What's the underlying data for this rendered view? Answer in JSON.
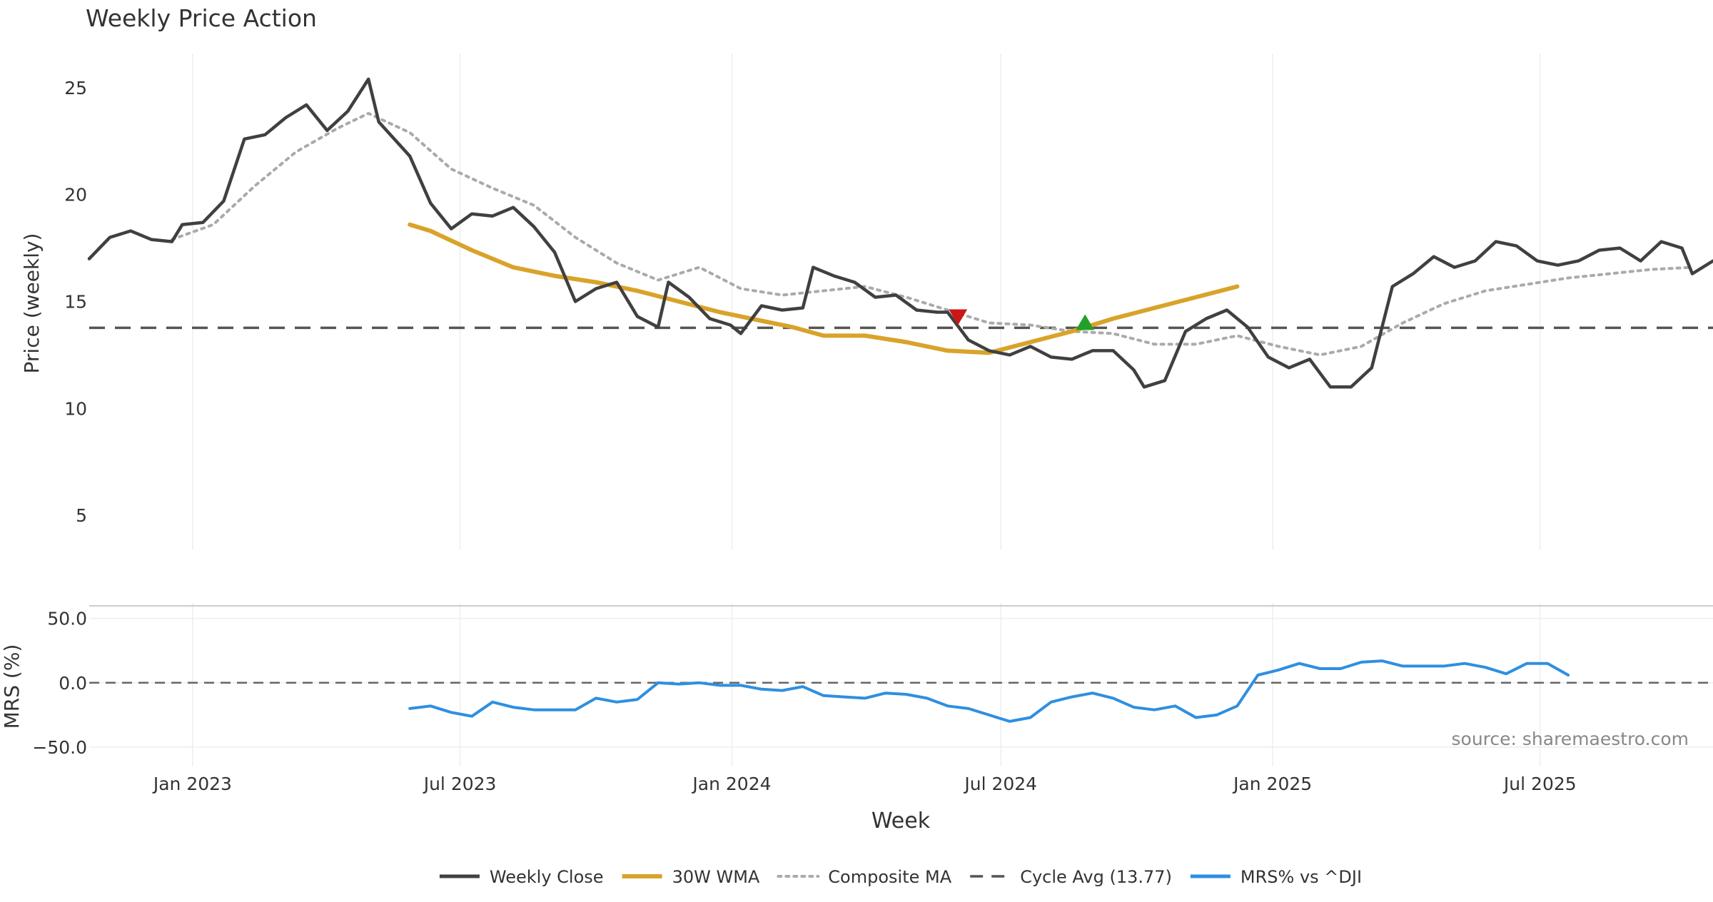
{
  "chart_data": {
    "title": "Weekly Price Action",
    "source_note": "source: sharemaestro.com",
    "xlabel": "Week",
    "x_ticks": [
      "2023-01-01",
      "2023-07-01",
      "2024-01-01",
      "2024-07-01",
      "2025-01-01",
      "2025-07-01"
    ],
    "x_tick_labels": [
      "Jan 2023",
      "Jul 2023",
      "Jan 2024",
      "Jul 2024",
      "Jan 2025",
      "Jul 2025"
    ],
    "x_range": [
      "2022-10-23",
      "2025-10-26"
    ],
    "legend": {
      "position": "bottom-center",
      "entries": [
        "Weekly Close",
        "30W WMA",
        "Composite MA",
        "Cycle Avg (13.77)",
        "MRS% vs ^DJI"
      ]
    },
    "colors": {
      "close": "#404040",
      "wma": "#d9a32a",
      "composite": "#aaaaaa",
      "cycle": "#555555",
      "mrs": "#2e8fe0",
      "buy": "#22a02a",
      "sell": "#cc1616",
      "grid": "#eeeeee"
    },
    "price_panel": {
      "type": "line",
      "ylabel": "Price (weekly)",
      "ylim": [
        3.4,
        26.6
      ],
      "yticks": [
        5,
        10,
        15,
        20,
        25
      ],
      "grid": "vertical",
      "cycle_avg": 13.77,
      "series": [
        {
          "name": "Weekly Close",
          "key": "close",
          "style": "solid",
          "width": 4.5,
          "points": [
            [
              "2022-10-23",
              17.0
            ],
            [
              "2022-11-06",
              18.0
            ],
            [
              "2022-11-20",
              18.3
            ],
            [
              "2022-12-04",
              17.9
            ],
            [
              "2022-12-18",
              17.8
            ],
            [
              "2022-12-25",
              18.6
            ],
            [
              "2023-01-08",
              18.7
            ],
            [
              "2023-01-22",
              19.7
            ],
            [
              "2023-02-05",
              22.6
            ],
            [
              "2023-02-19",
              22.8
            ],
            [
              "2023-03-05",
              23.6
            ],
            [
              "2023-03-19",
              24.2
            ],
            [
              "2023-04-02",
              23.0
            ],
            [
              "2023-04-16",
              23.9
            ],
            [
              "2023-04-30",
              25.4
            ],
            [
              "2023-05-07",
              23.4
            ],
            [
              "2023-05-28",
              21.8
            ],
            [
              "2023-06-11",
              19.6
            ],
            [
              "2023-06-25",
              18.4
            ],
            [
              "2023-07-09",
              19.1
            ],
            [
              "2023-07-23",
              19.0
            ],
            [
              "2023-08-06",
              19.4
            ],
            [
              "2023-08-20",
              18.5
            ],
            [
              "2023-09-03",
              17.3
            ],
            [
              "2023-09-17",
              15.0
            ],
            [
              "2023-10-01",
              15.6
            ],
            [
              "2023-10-15",
              15.9
            ],
            [
              "2023-10-29",
              14.3
            ],
            [
              "2023-11-12",
              13.8
            ],
            [
              "2023-11-19",
              15.9
            ],
            [
              "2023-12-03",
              15.2
            ],
            [
              "2023-12-17",
              14.2
            ],
            [
              "2023-12-31",
              13.9
            ],
            [
              "2024-01-07",
              13.5
            ],
            [
              "2024-01-21",
              14.8
            ],
            [
              "2024-02-04",
              14.6
            ],
            [
              "2024-02-18",
              14.7
            ],
            [
              "2024-02-25",
              16.6
            ],
            [
              "2024-03-10",
              16.2
            ],
            [
              "2024-03-24",
              15.9
            ],
            [
              "2024-04-07",
              15.2
            ],
            [
              "2024-04-21",
              15.3
            ],
            [
              "2024-05-05",
              14.6
            ],
            [
              "2024-05-19",
              14.5
            ],
            [
              "2024-05-26",
              14.5
            ],
            [
              "2024-06-09",
              13.2
            ],
            [
              "2024-06-23",
              12.7
            ],
            [
              "2024-07-07",
              12.5
            ],
            [
              "2024-07-21",
              12.9
            ],
            [
              "2024-08-04",
              12.4
            ],
            [
              "2024-08-18",
              12.3
            ],
            [
              "2024-09-01",
              12.7
            ],
            [
              "2024-09-15",
              12.7
            ],
            [
              "2024-09-29",
              11.8
            ],
            [
              "2024-10-06",
              11.0
            ],
            [
              "2024-10-20",
              11.3
            ],
            [
              "2024-11-03",
              13.6
            ],
            [
              "2024-11-17",
              14.2
            ],
            [
              "2024-12-01",
              14.6
            ],
            [
              "2024-12-15",
              13.8
            ],
            [
              "2024-12-29",
              12.4
            ],
            [
              "2025-01-12",
              11.9
            ],
            [
              "2025-01-26",
              12.3
            ],
            [
              "2025-02-09",
              11.0
            ],
            [
              "2025-02-23",
              11.0
            ],
            [
              "2025-03-09",
              11.9
            ],
            [
              "2025-03-23",
              15.7
            ],
            [
              "2025-04-06",
              16.3
            ],
            [
              "2025-04-20",
              17.1
            ],
            [
              "2025-05-04",
              16.6
            ],
            [
              "2025-05-18",
              16.9
            ],
            [
              "2025-06-01",
              17.8
            ],
            [
              "2025-06-15",
              17.6
            ],
            [
              "2025-06-29",
              16.9
            ],
            [
              "2025-07-13",
              16.7
            ],
            [
              "2025-07-27",
              16.9
            ],
            [
              "2025-08-10",
              17.4
            ],
            [
              "2025-08-24",
              17.5
            ],
            [
              "2025-09-07",
              16.9
            ],
            [
              "2025-09-21",
              17.8
            ],
            [
              "2025-10-05",
              17.5
            ],
            [
              "2025-10-12",
              16.3
            ],
            [
              "2025-10-26",
              16.9
            ]
          ]
        },
        {
          "name": "30W WMA",
          "key": "wma",
          "style": "solid",
          "width": 6,
          "points": [
            [
              "2023-05-28",
              18.6
            ],
            [
              "2023-06-11",
              18.3
            ],
            [
              "2023-07-09",
              17.4
            ],
            [
              "2023-08-06",
              16.6
            ],
            [
              "2023-09-03",
              16.2
            ],
            [
              "2023-10-01",
              15.9
            ],
            [
              "2023-10-29",
              15.5
            ],
            [
              "2023-11-26",
              15.0
            ],
            [
              "2023-12-24",
              14.5
            ],
            [
              "2024-01-21",
              14.1
            ],
            [
              "2024-02-11",
              13.8
            ],
            [
              "2024-03-03",
              13.4
            ],
            [
              "2024-03-31",
              13.4
            ],
            [
              "2024-04-28",
              13.1
            ],
            [
              "2024-05-26",
              12.7
            ],
            [
              "2024-06-23",
              12.6
            ],
            [
              "2024-07-21",
              13.1
            ],
            [
              "2024-08-18",
              13.6
            ],
            [
              "2024-09-15",
              14.2
            ],
            [
              "2024-10-13",
              14.7
            ],
            [
              "2024-11-10",
              15.2
            ],
            [
              "2024-12-08",
              15.7
            ]
          ]
        },
        {
          "name": "Composite MA",
          "key": "composite",
          "style": "dotted",
          "width": 4,
          "points": [
            [
              "2022-12-18",
              17.9
            ],
            [
              "2023-01-15",
              18.6
            ],
            [
              "2023-02-12",
              20.4
            ],
            [
              "2023-03-12",
              22.0
            ],
            [
              "2023-04-09",
              23.1
            ],
            [
              "2023-04-30",
              23.8
            ],
            [
              "2023-05-28",
              22.9
            ],
            [
              "2023-06-25",
              21.2
            ],
            [
              "2023-07-23",
              20.3
            ],
            [
              "2023-08-20",
              19.5
            ],
            [
              "2023-09-17",
              18.0
            ],
            [
              "2023-10-15",
              16.8
            ],
            [
              "2023-11-12",
              16.0
            ],
            [
              "2023-12-10",
              16.6
            ],
            [
              "2024-01-07",
              15.6
            ],
            [
              "2024-02-04",
              15.3
            ],
            [
              "2024-03-03",
              15.5
            ],
            [
              "2024-03-31",
              15.7
            ],
            [
              "2024-04-28",
              15.2
            ],
            [
              "2024-05-26",
              14.6
            ],
            [
              "2024-06-23",
              14.0
            ],
            [
              "2024-07-21",
              13.9
            ],
            [
              "2024-08-18",
              13.6
            ],
            [
              "2024-09-15",
              13.5
            ],
            [
              "2024-10-13",
              13.0
            ],
            [
              "2024-11-10",
              13.0
            ],
            [
              "2024-12-08",
              13.4
            ],
            [
              "2025-01-05",
              12.9
            ],
            [
              "2025-02-02",
              12.5
            ],
            [
              "2025-03-02",
              12.9
            ],
            [
              "2025-03-30",
              14.0
            ],
            [
              "2025-04-27",
              14.9
            ],
            [
              "2025-05-25",
              15.5
            ],
            [
              "2025-06-22",
              15.8
            ],
            [
              "2025-07-20",
              16.1
            ],
            [
              "2025-08-17",
              16.3
            ],
            [
              "2025-09-14",
              16.5
            ],
            [
              "2025-10-12",
              16.6
            ]
          ]
        }
      ],
      "markers": [
        {
          "kind": "sell",
          "date": "2024-06-02",
          "y": 14.3
        },
        {
          "kind": "buy",
          "date": "2024-08-27",
          "y": 14.0
        }
      ]
    },
    "mrs_panel": {
      "type": "line",
      "ylabel": "MRS (%)",
      "ylim": [
        -65,
        62
      ],
      "yticks": [
        50,
        0,
        -50
      ],
      "ytick_labels": [
        "50.0",
        "0.0",
        "−50.0"
      ],
      "zero_line": 0,
      "series": [
        {
          "name": "MRS% vs ^DJI",
          "key": "mrs",
          "points": [
            [
              "2023-05-28",
              -20
            ],
            [
              "2023-06-11",
              -18
            ],
            [
              "2023-06-25",
              -23
            ],
            [
              "2023-07-09",
              -26
            ],
            [
              "2023-07-23",
              -15
            ],
            [
              "2023-08-06",
              -19
            ],
            [
              "2023-08-20",
              -21
            ],
            [
              "2023-09-03",
              -21
            ],
            [
              "2023-09-17",
              -21
            ],
            [
              "2023-10-01",
              -12
            ],
            [
              "2023-10-15",
              -15
            ],
            [
              "2023-10-29",
              -13
            ],
            [
              "2023-11-12",
              0
            ],
            [
              "2023-11-26",
              -1
            ],
            [
              "2023-12-10",
              0
            ],
            [
              "2023-12-24",
              -2
            ],
            [
              "2024-01-07",
              -2
            ],
            [
              "2024-01-21",
              -5
            ],
            [
              "2024-02-04",
              -6
            ],
            [
              "2024-02-18",
              -3
            ],
            [
              "2024-03-03",
              -10
            ],
            [
              "2024-03-17",
              -11
            ],
            [
              "2024-03-31",
              -12
            ],
            [
              "2024-04-14",
              -8
            ],
            [
              "2024-04-28",
              -9
            ],
            [
              "2024-05-12",
              -12
            ],
            [
              "2024-05-26",
              -18
            ],
            [
              "2024-06-09",
              -20
            ],
            [
              "2024-06-23",
              -25
            ],
            [
              "2024-07-07",
              -30
            ],
            [
              "2024-07-21",
              -27
            ],
            [
              "2024-08-04",
              -15
            ],
            [
              "2024-08-18",
              -11
            ],
            [
              "2024-09-01",
              -8
            ],
            [
              "2024-09-15",
              -12
            ],
            [
              "2024-09-29",
              -19
            ],
            [
              "2024-10-13",
              -21
            ],
            [
              "2024-10-27",
              -18
            ],
            [
              "2024-11-10",
              -27
            ],
            [
              "2024-11-24",
              -25
            ],
            [
              "2024-12-08",
              -18
            ],
            [
              "2024-12-22",
              6
            ],
            [
              "2025-01-05",
              10
            ],
            [
              "2025-01-19",
              15
            ],
            [
              "2025-02-02",
              11
            ],
            [
              "2025-02-16",
              11
            ],
            [
              "2025-03-02",
              16
            ],
            [
              "2025-03-16",
              17
            ],
            [
              "2025-03-30",
              13
            ],
            [
              "2025-04-13",
              13
            ],
            [
              "2025-04-27",
              13
            ],
            [
              "2025-05-11",
              15
            ],
            [
              "2025-05-25",
              12
            ],
            [
              "2025-06-08",
              7
            ],
            [
              "2025-06-22",
              15
            ],
            [
              "2025-07-06",
              15
            ],
            [
              "2025-07-20",
              6
            ]
          ]
        }
      ]
    }
  }
}
